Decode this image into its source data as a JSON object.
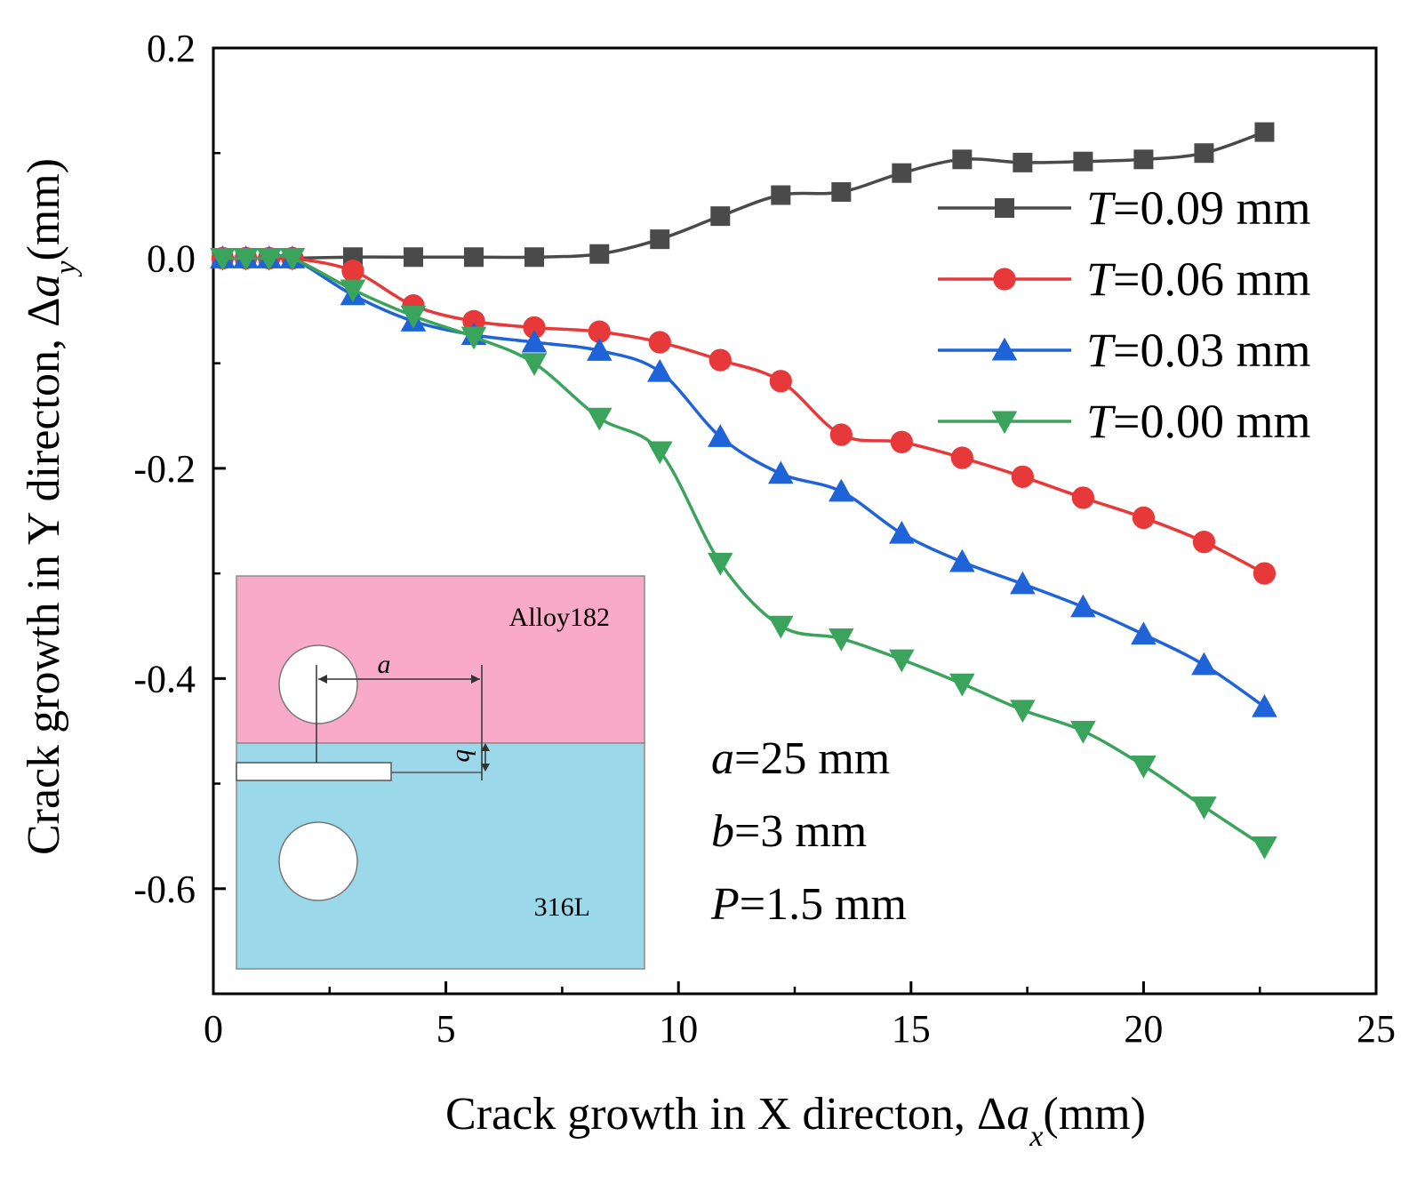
{
  "chart_data": {
    "type": "line",
    "title": "",
    "xlabel": {
      "prefix": "Crack growth in X directon, Δ",
      "var": "a",
      "sub": "x",
      "suffix": "(mm)"
    },
    "ylabel": {
      "prefix": "Crack growth in Y directon, Δ",
      "var": "a",
      "sub": "y",
      "suffix": "(mm)"
    },
    "xlim": [
      0,
      25
    ],
    "ylim": [
      -0.7,
      0.2
    ],
    "xticks": [
      0,
      5,
      10,
      15,
      20,
      25
    ],
    "xtick_labels": [
      "0",
      "5",
      "10",
      "15",
      "20",
      "25"
    ],
    "yticks": [
      -0.6,
      -0.4,
      -0.2,
      0.0,
      0.2
    ],
    "ytick_labels": [
      "-0.6",
      "-0.4",
      "-0.2",
      "0.0",
      "0.2"
    ],
    "grid": false,
    "legend_position": "top-right",
    "series": [
      {
        "name": "T=0.09 mm",
        "label_var": "T",
        "label_value": "=0.09 mm",
        "color": "#4a4a4a",
        "marker": "square",
        "x": [
          0.2,
          0.7,
          1.2,
          1.7,
          3.0,
          4.3,
          5.6,
          6.9,
          8.3,
          9.6,
          10.9,
          12.2,
          13.5,
          14.8,
          16.1,
          17.4,
          18.7,
          20.0,
          21.3,
          22.6
        ],
        "y": [
          0.0,
          0.0,
          0.0,
          0.0,
          0.001,
          0.001,
          0.001,
          0.001,
          0.004,
          0.018,
          0.04,
          0.06,
          0.063,
          0.081,
          0.094,
          0.091,
          0.092,
          0.094,
          0.1,
          0.12
        ]
      },
      {
        "name": "T=0.06 mm",
        "label_var": "T",
        "label_value": "=0.06 mm",
        "color": "#e8393a",
        "marker": "circle",
        "x": [
          0.2,
          0.7,
          1.2,
          1.7,
          3.0,
          4.3,
          5.6,
          6.9,
          8.3,
          9.6,
          10.9,
          12.2,
          13.5,
          14.8,
          16.1,
          17.4,
          18.7,
          20.0,
          21.3,
          22.6
        ],
        "y": [
          0.0,
          0.0,
          0.0,
          0.0,
          -0.012,
          -0.045,
          -0.06,
          -0.066,
          -0.07,
          -0.08,
          -0.097,
          -0.117,
          -0.168,
          -0.175,
          -0.19,
          -0.208,
          -0.228,
          -0.247,
          -0.27,
          -0.3
        ]
      },
      {
        "name": "T=0.03 mm",
        "label_var": "T",
        "label_value": "=0.03 mm",
        "color": "#1f63d9",
        "marker": "triangle-up",
        "x": [
          0.2,
          0.7,
          1.2,
          1.7,
          3.0,
          4.3,
          5.6,
          6.9,
          8.3,
          9.6,
          10.9,
          12.2,
          13.5,
          14.8,
          16.1,
          17.4,
          18.7,
          20.0,
          21.3,
          22.6
        ],
        "y": [
          0.0,
          0.0,
          0.0,
          0.0,
          -0.035,
          -0.06,
          -0.073,
          -0.08,
          -0.088,
          -0.108,
          -0.17,
          -0.205,
          -0.222,
          -0.262,
          -0.289,
          -0.31,
          -0.332,
          -0.358,
          -0.387,
          -0.427
        ]
      },
      {
        "name": "T=0.00 mm",
        "label_var": "T",
        "label_value": "=0.00 mm",
        "color": "#3aa35c",
        "marker": "triangle-down",
        "x": [
          0.2,
          0.7,
          1.2,
          1.7,
          3.0,
          4.3,
          5.6,
          6.9,
          8.3,
          9.6,
          10.9,
          12.2,
          13.5,
          14.8,
          16.1,
          17.4,
          18.7,
          20.0,
          21.3,
          22.6
        ],
        "y": [
          0.0,
          0.0,
          0.0,
          0.0,
          -0.03,
          -0.055,
          -0.075,
          -0.1,
          -0.152,
          -0.184,
          -0.29,
          -0.35,
          -0.362,
          -0.382,
          -0.405,
          -0.43,
          -0.45,
          -0.483,
          -0.522,
          -0.56
        ]
      }
    ],
    "annotations": [
      {
        "var": "a",
        "value": "=25 mm"
      },
      {
        "var": "b",
        "value": "=3 mm"
      },
      {
        "var": "P",
        "value": "=1.5 mm"
      }
    ],
    "inset": {
      "top_label": "Alloy182",
      "bottom_label": "316L",
      "dim_a": "a",
      "dim_b": "b",
      "top_color": "#f8aac8",
      "bottom_color": "#9ad8ea"
    }
  }
}
